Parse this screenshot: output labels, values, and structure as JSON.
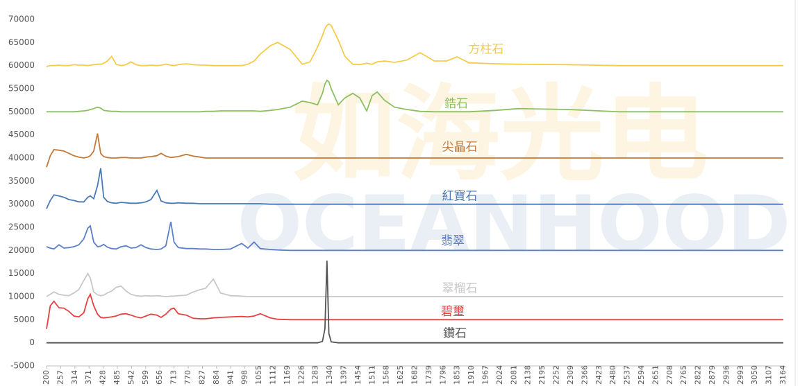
{
  "chart_data": {
    "type": "line",
    "watermark": [
      "如海光电",
      "OCEANHOOD"
    ],
    "x": [
      200,
      215,
      230,
      250,
      270,
      290,
      310,
      330,
      350,
      366,
      376,
      390,
      405,
      418,
      430,
      445,
      462,
      480,
      500,
      520,
      540,
      560,
      580,
      600,
      620,
      644,
      661,
      680,
      700,
      713,
      730,
      762,
      790,
      818,
      840,
      871,
      900,
      940,
      985,
      1010,
      1035,
      1060,
      1100,
      1130,
      1180,
      1229,
      1260,
      1290,
      1310,
      1320,
      1328,
      1336,
      1345,
      1374,
      1400,
      1432,
      1460,
      1488,
      1510,
      1530,
      1560,
      1600,
      1650,
      1703,
      1760,
      1810,
      1851,
      1900,
      2005,
      2100,
      2300,
      2500,
      2700,
      2900,
      3164
    ],
    "series": [
      {
        "name": "方柱石",
        "color": "#f5cc4a",
        "values": [
          59800,
          60000,
          60000,
          60100,
          60000,
          60000,
          60200,
          60100,
          60100,
          60000,
          60100,
          60200,
          60300,
          60300,
          60500,
          61000,
          62000,
          60300,
          60000,
          60200,
          60800,
          60200,
          60000,
          60000,
          60100,
          60000,
          60100,
          60300,
          60100,
          60000,
          60200,
          60400,
          60200,
          60100,
          60100,
          60000,
          60000,
          60000,
          60000,
          60300,
          61000,
          62500,
          64300,
          65000,
          63500,
          60300,
          60800,
          64000,
          66500,
          68000,
          68700,
          69000,
          68700,
          65500,
          62000,
          60300,
          60200,
          60500,
          60300,
          60800,
          61000,
          60700,
          61200,
          62800,
          61000,
          61000,
          61900,
          60600,
          60400,
          60300,
          60200,
          60000,
          60000,
          60000,
          60000
        ]
      },
      {
        "name": "鋯石",
        "color": "#8cbf5f",
        "values": [
          50000,
          50000,
          50000,
          50000,
          50000,
          50000,
          50000,
          50100,
          50200,
          50300,
          50500,
          50700,
          51000,
          50800,
          50300,
          50200,
          50100,
          50100,
          50000,
          50000,
          50000,
          50000,
          50000,
          50000,
          50000,
          50000,
          50000,
          50000,
          50000,
          50000,
          50000,
          50000,
          50000,
          50000,
          50100,
          50100,
          50200,
          50200,
          50200,
          50200,
          50200,
          50100,
          50300,
          50500,
          51000,
          52300,
          52000,
          51500,
          54000,
          56000,
          56800,
          56500,
          55000,
          51500,
          53000,
          54000,
          53000,
          50200,
          53500,
          54300,
          52500,
          51000,
          50500,
          50100,
          50000,
          50000,
          50000,
          50000,
          50300,
          50700,
          50500,
          50000,
          50000,
          50000,
          50000
        ]
      },
      {
        "name": "尖晶石",
        "color": "#c07a3a",
        "values": [
          38000,
          40500,
          41800,
          41700,
          41500,
          41000,
          40500,
          40200,
          40000,
          40200,
          40500,
          41500,
          45300,
          41000,
          40300,
          40100,
          40000,
          40000,
          40100,
          40100,
          40000,
          40000,
          40000,
          40200,
          40300,
          40500,
          41000,
          40400,
          40100,
          40200,
          40300,
          40800,
          40400,
          40200,
          40000,
          40000,
          40000,
          40000,
          40000,
          40000,
          40000,
          40000,
          40000,
          40000,
          40000,
          40000,
          40000,
          40000,
          40000,
          40000,
          40000,
          40000,
          40000,
          40000,
          40000,
          40000,
          40000,
          40000,
          40000,
          40000,
          40000,
          40000,
          40000,
          40000,
          40000,
          40000,
          40000,
          40000,
          40000,
          40000,
          40000,
          40000,
          40000,
          40000,
          40000
        ]
      },
      {
        "name": "紅寶石",
        "color": "#4a7ab5",
        "values": [
          29000,
          30800,
          32000,
          31800,
          31500,
          31000,
          30800,
          30500,
          30500,
          31500,
          31800,
          31200,
          34000,
          37800,
          31500,
          30600,
          30300,
          30200,
          30400,
          30300,
          30200,
          30200,
          30300,
          30500,
          31000,
          33000,
          30700,
          30300,
          30200,
          30200,
          30300,
          30200,
          30200,
          30100,
          30100,
          30100,
          30100,
          30100,
          30100,
          30100,
          30100,
          30100,
          30000,
          30000,
          30000,
          30000,
          30000,
          30000,
          30000,
          30000,
          30000,
          30000,
          30000,
          30000,
          30000,
          30000,
          30000,
          30000,
          30000,
          30000,
          30000,
          30000,
          30000,
          30000,
          30000,
          30000,
          30000,
          30000,
          30000,
          30000,
          30000,
          30000,
          30000,
          30000,
          30000
        ]
      },
      {
        "name": "翡翠",
        "color": "#5b7fc8",
        "values": [
          20800,
          20500,
          20300,
          21200,
          20500,
          20600,
          20800,
          21200,
          22500,
          24800,
          25300,
          21800,
          20800,
          20900,
          21300,
          20700,
          20400,
          20300,
          20800,
          21000,
          20500,
          20600,
          21200,
          20600,
          20300,
          20200,
          20300,
          21000,
          26200,
          21800,
          20600,
          20400,
          20400,
          20300,
          20300,
          20200,
          20200,
          20300,
          21500,
          20500,
          21800,
          20400,
          20200,
          20100,
          20000,
          20000,
          20000,
          20000,
          20000,
          20000,
          20000,
          20000,
          20000,
          20000,
          20000,
          20000,
          20000,
          20000,
          20000,
          20000,
          20000,
          20000,
          20000,
          20000,
          20000,
          20000,
          20000,
          20000,
          20000,
          20000,
          20000,
          20000,
          20000,
          20000,
          20000
        ]
      },
      {
        "name": "翠榴石",
        "color": "#c8c8c8",
        "values": [
          10000,
          10500,
          11000,
          10500,
          10300,
          10200,
          10800,
          11500,
          13500,
          15000,
          14000,
          11000,
          10400,
          10200,
          10300,
          10800,
          11200,
          12000,
          12300,
          11200,
          10500,
          10200,
          10100,
          10200,
          10100,
          10200,
          10100,
          10000,
          10100,
          10100,
          10200,
          10300,
          11000,
          11500,
          11800,
          13800,
          10800,
          10200,
          10100,
          10000,
          10000,
          10000,
          10000,
          10000,
          10000,
          10000,
          10000,
          10000,
          10000,
          10000,
          10000,
          10000,
          10000,
          10000,
          10000,
          10000,
          10000,
          10000,
          10000,
          10000,
          10000,
          10000,
          10000,
          10000,
          10000,
          10000,
          10000,
          10000,
          10000,
          10000,
          10000,
          10000,
          10000,
          10000,
          10000
        ]
      },
      {
        "name": "碧璽",
        "color": "#e84040",
        "values": [
          3000,
          8000,
          9000,
          7600,
          7500,
          6800,
          5800,
          5600,
          6500,
          9500,
          10500,
          8000,
          6200,
          5500,
          5400,
          5500,
          5600,
          5800,
          6200,
          6300,
          6000,
          5600,
          5400,
          5800,
          6200,
          6000,
          5500,
          6200,
          7300,
          7500,
          6300,
          6000,
          5300,
          5200,
          5200,
          5400,
          5500,
          5600,
          5700,
          5600,
          5800,
          6300,
          5400,
          5100,
          5000,
          5000,
          5000,
          5000,
          5000,
          5000,
          5000,
          5000,
          5000,
          5000,
          5000,
          5000,
          5000,
          5000,
          5000,
          5000,
          5000,
          5000,
          5000,
          5000,
          5000,
          5000,
          5000,
          5000,
          5000,
          5000,
          5000,
          5000,
          5000,
          5000,
          5000
        ]
      },
      {
        "name": "鑽石",
        "color": "#555555",
        "values": [
          0,
          0,
          0,
          0,
          0,
          0,
          0,
          0,
          0,
          0,
          0,
          0,
          0,
          0,
          0,
          0,
          0,
          0,
          0,
          0,
          0,
          0,
          0,
          0,
          0,
          0,
          0,
          0,
          0,
          0,
          0,
          0,
          0,
          0,
          0,
          0,
          0,
          0,
          0,
          0,
          0,
          0,
          0,
          0,
          0,
          0,
          0,
          0,
          300,
          3000,
          17800,
          2000,
          200,
          0,
          0,
          0,
          0,
          0,
          0,
          0,
          0,
          0,
          0,
          0,
          0,
          0,
          0,
          0,
          0,
          0,
          0,
          0,
          0,
          0,
          0
        ]
      }
    ],
    "xlim": [
      200,
      3164
    ],
    "xticks": [
      200,
      257,
      314,
      371,
      428,
      485,
      542,
      599,
      656,
      713,
      770,
      827,
      884,
      941,
      998,
      1055,
      1112,
      1169,
      1226,
      1283,
      1340,
      1397,
      1454,
      1511,
      1568,
      1625,
      1682,
      1739,
      1796,
      1853,
      1910,
      1967,
      2024,
      2081,
      2138,
      2195,
      2252,
      2309,
      2366,
      2423,
      2480,
      2537,
      2594,
      2651,
      2708,
      2765,
      2822,
      2879,
      2936,
      2993,
      3050,
      3107,
      3164
    ],
    "ylim": [
      -5000,
      70000
    ],
    "yticks": [
      -5000,
      0,
      5000,
      10000,
      15000,
      20000,
      25000,
      30000,
      35000,
      40000,
      45000,
      50000,
      55000,
      60000,
      65000,
      70000
    ]
  }
}
